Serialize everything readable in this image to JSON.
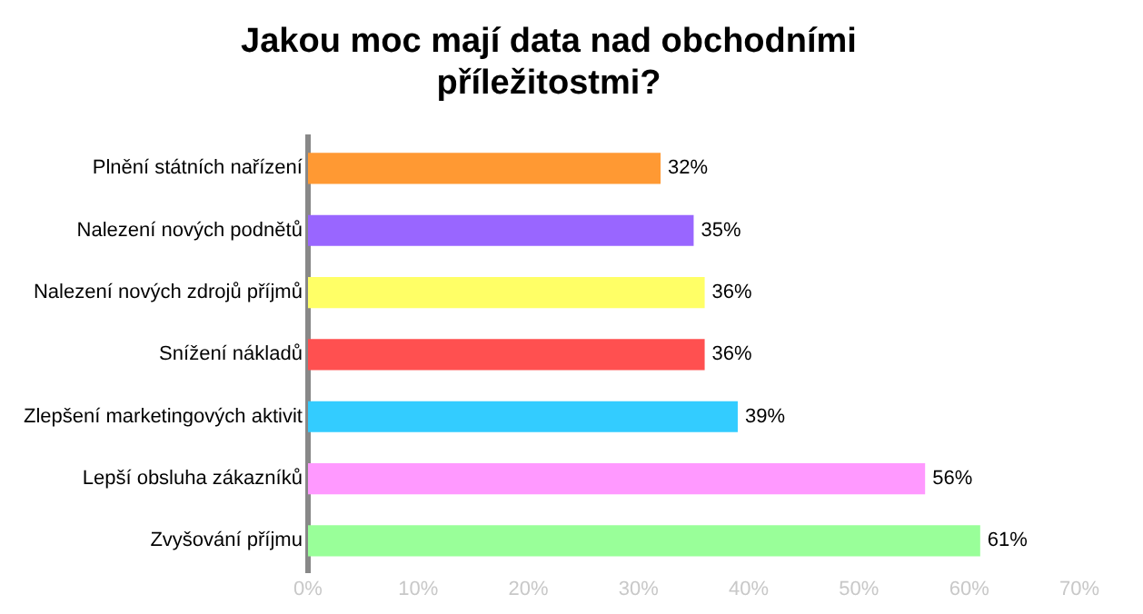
{
  "chart_data": {
    "type": "bar",
    "orientation": "horizontal",
    "title": "Jakou moc mají data nad obchodními příležitostmi?",
    "categories": [
      "Plnění státních nařízení",
      "Nalezení nových podnětů",
      "Nalezení nových zdrojů příjmů",
      "Snížení nákladů",
      "Zlepšení marketingových aktivit",
      "Lepší obsluha zákazníků",
      "Zvyšování příjmu"
    ],
    "values": [
      32,
      35,
      36,
      36,
      39,
      56,
      61
    ],
    "colors": [
      "#ff9933",
      "#9966ff",
      "#ffff66",
      "#ff5050",
      "#33ccff",
      "#ff99ff",
      "#99ff99"
    ],
    "value_labels": [
      "32%",
      "35%",
      "36%",
      "36%",
      "39%",
      "56%",
      "61%"
    ],
    "xlim": [
      0,
      70
    ],
    "xticks": [
      {
        "value": 0,
        "label": "0%"
      },
      {
        "value": 10,
        "label": "10%"
      },
      {
        "value": 20,
        "label": "20%"
      },
      {
        "value": 30,
        "label": "30%"
      },
      {
        "value": 40,
        "label": "40%"
      },
      {
        "value": 50,
        "label": "50%"
      },
      {
        "value": 60,
        "label": "60%"
      },
      {
        "value": 70,
        "label": "70%"
      }
    ],
    "grid": false,
    "legend": false
  }
}
